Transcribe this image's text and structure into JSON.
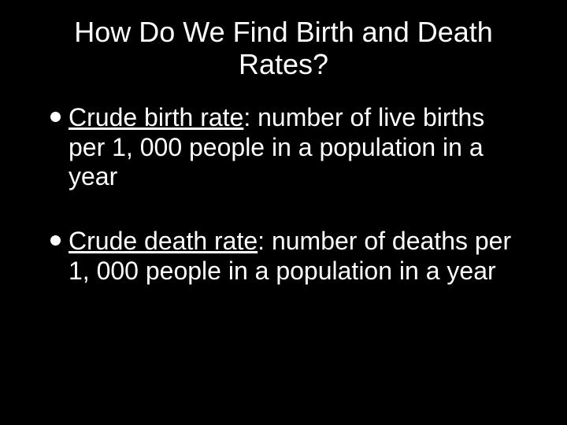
{
  "slide": {
    "background_color": "#000000",
    "text_color": "#ffffff",
    "title": {
      "line1": "How Do We Find Birth and Death",
      "line2": "Rates?",
      "fontsize": 36,
      "weight": "400",
      "align": "center"
    },
    "bullets": [
      {
        "term": "Crude birth rate",
        "definition": ": number of live births per 1, 000 people in a population in a year"
      },
      {
        "term": "Crude death rate",
        "definition": ": number of deaths per 1, 000 people in a population in a year"
      }
    ],
    "bullet_style": {
      "fontsize": 32,
      "weight": "400",
      "dot_color": "#ffffff",
      "dot_diameter": 13,
      "line_height": 1.18
    }
  }
}
